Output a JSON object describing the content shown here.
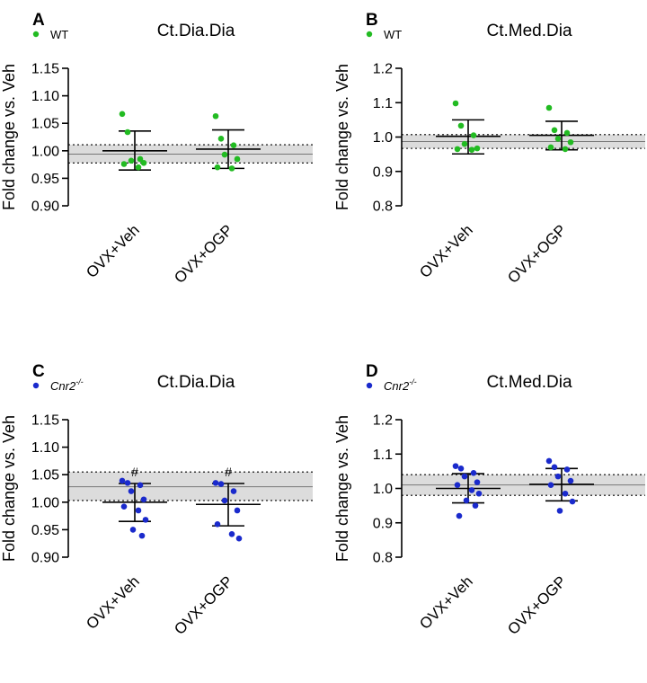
{
  "chart_data": [
    {
      "type": "scatter",
      "panel_label": "A",
      "title": "Ct.Dia.Dia",
      "legend": "WT",
      "legend_italic": false,
      "color": "#22bb22",
      "ylabel": "Fold change vs. Veh",
      "ylim": [
        0.9,
        1.15
      ],
      "yticks": [
        "0.90",
        "0.95",
        "1.00",
        "1.05",
        "1.10",
        "1.15"
      ],
      "categories": [
        "OVX+Veh",
        "OVX+OGP"
      ],
      "reference_band": {
        "lower": 0.978,
        "upper": 1.011,
        "mean": 0.994
      },
      "groups": [
        {
          "name": "OVX+Veh",
          "points": [
            1.067,
            1.034,
            0.985,
            0.982,
            0.978,
            0.976,
            0.97
          ],
          "mean": 1.0,
          "sd_low": 0.965,
          "sd_high": 1.036,
          "marker": ""
        },
        {
          "name": "OVX+OGP",
          "points": [
            1.063,
            1.022,
            1.01,
            0.993,
            0.985,
            0.97,
            0.968
          ],
          "mean": 1.003,
          "sd_low": 0.968,
          "sd_high": 1.038,
          "marker": ""
        }
      ]
    },
    {
      "type": "scatter",
      "panel_label": "B",
      "title": "Ct.Med.Dia",
      "legend": "WT",
      "legend_italic": false,
      "color": "#22bb22",
      "ylabel": "Fold change vs. Veh",
      "ylim": [
        0.8,
        1.2
      ],
      "yticks": [
        "0.8",
        "0.9",
        "1.0",
        "1.1",
        "1.2"
      ],
      "categories": [
        "OVX+Veh",
        "OVX+OGP"
      ],
      "reference_band": {
        "lower": 0.967,
        "upper": 1.007,
        "mean": 0.987
      },
      "groups": [
        {
          "name": "OVX+Veh",
          "points": [
            1.098,
            1.033,
            1.005,
            0.98,
            0.967,
            0.965,
            0.963
          ],
          "mean": 1.002,
          "sd_low": 0.951,
          "sd_high": 1.05,
          "marker": ""
        },
        {
          "name": "OVX+OGP",
          "points": [
            1.085,
            1.02,
            1.012,
            0.995,
            0.985,
            0.97,
            0.965
          ],
          "mean": 1.005,
          "sd_low": 0.963,
          "sd_high": 1.046,
          "marker": ""
        }
      ]
    },
    {
      "type": "scatter",
      "panel_label": "C",
      "title": "Ct.Dia.Dia",
      "legend": "Cnr2",
      "legend_sup": "-/-",
      "legend_italic": true,
      "color": "#1a2acc",
      "ylabel": "Fold change vs. Veh",
      "ylim": [
        0.9,
        1.15
      ],
      "yticks": [
        "0.90",
        "0.95",
        "1.00",
        "1.05",
        "1.10",
        "1.15"
      ],
      "categories": [
        "OVX+Veh",
        "OVX+OGP"
      ],
      "reference_band": {
        "lower": 1.003,
        "upper": 1.055,
        "mean": 1.028
      },
      "groups": [
        {
          "name": "OVX+Veh",
          "points": [
            1.039,
            1.035,
            1.031,
            1.02,
            1.005,
            0.992,
            0.985,
            0.968,
            0.95,
            0.939
          ],
          "mean": 1.0,
          "sd_low": 0.965,
          "sd_high": 1.034,
          "marker": "#"
        },
        {
          "name": "OVX+OGP",
          "points": [
            1.035,
            1.033,
            1.02,
            1.003,
            0.985,
            0.96,
            0.942,
            0.934
          ],
          "mean": 0.996,
          "sd_low": 0.957,
          "sd_high": 1.034,
          "marker": "#"
        }
      ]
    },
    {
      "type": "scatter",
      "panel_label": "D",
      "title": "Ct.Med.Dia",
      "legend": "Cnr2",
      "legend_sup": "-/-",
      "legend_italic": true,
      "color": "#1a2acc",
      "ylabel": "Fold change vs. Veh",
      "ylim": [
        0.8,
        1.2
      ],
      "yticks": [
        "0.8",
        "0.9",
        "1.0",
        "1.1",
        "1.2"
      ],
      "categories": [
        "OVX+Veh",
        "OVX+OGP"
      ],
      "reference_band": {
        "lower": 0.98,
        "upper": 1.04,
        "mean": 1.01
      },
      "groups": [
        {
          "name": "OVX+Veh",
          "points": [
            1.065,
            1.058,
            1.045,
            1.035,
            1.018,
            1.01,
            0.995,
            0.985,
            0.965,
            0.95,
            0.92
          ],
          "mean": 1.0,
          "sd_low": 0.958,
          "sd_high": 1.043,
          "marker": ""
        },
        {
          "name": "OVX+OGP",
          "points": [
            1.08,
            1.062,
            1.055,
            1.035,
            1.022,
            1.01,
            0.985,
            0.962,
            0.935
          ],
          "mean": 1.012,
          "sd_low": 0.964,
          "sd_high": 1.058,
          "marker": ""
        }
      ]
    }
  ]
}
